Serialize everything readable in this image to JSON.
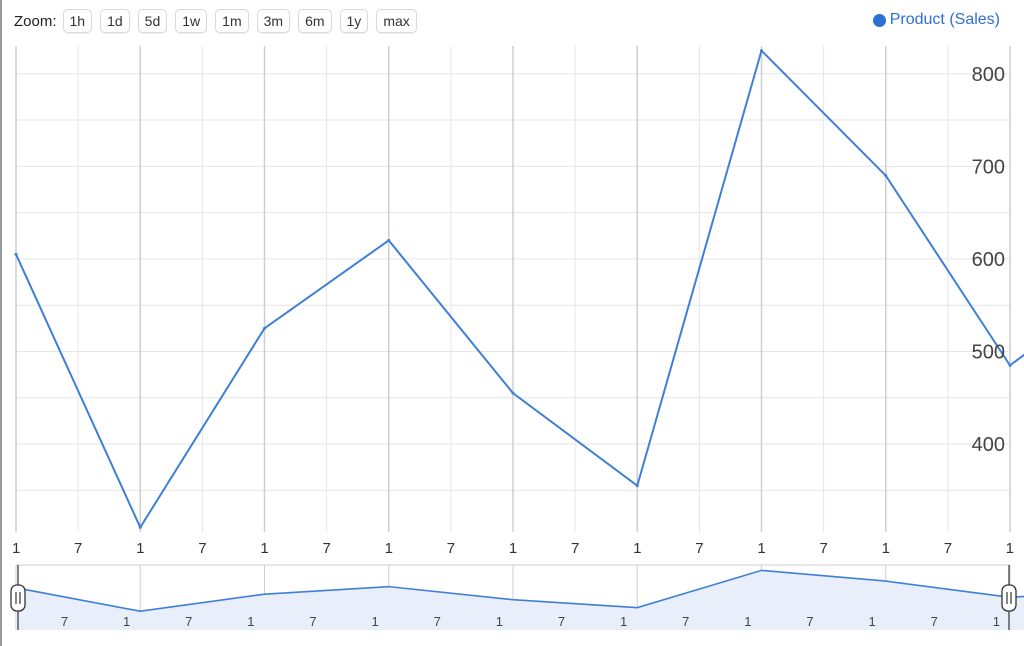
{
  "zoom": {
    "label": "Zoom:",
    "buttons": [
      "1h",
      "1d",
      "5d",
      "1w",
      "1m",
      "3m",
      "6m",
      "1y",
      "max"
    ]
  },
  "legend": {
    "label": "Product (Sales)"
  },
  "colors": {
    "line": "#3f7fd6",
    "legend": "#2f6fd2",
    "range_fill": "#e8effb",
    "grid": "#e6e6e6",
    "grid_major": "#cfcfcf"
  },
  "chart_data": {
    "type": "line",
    "title": "",
    "xlabel": "",
    "ylabel": "",
    "x_tick_labels": [
      "1",
      "7",
      "1",
      "7",
      "1",
      "7",
      "1",
      "7",
      "1",
      "7",
      "1",
      "7",
      "1",
      "7",
      "1",
      "7",
      "1"
    ],
    "navigator_tick_labels": [
      "7",
      "1",
      "7",
      "1",
      "7",
      "1",
      "7",
      "1",
      "7",
      "1",
      "7",
      "1",
      "7",
      "1",
      "7",
      "1"
    ],
    "y_ticks": [
      400,
      500,
      600,
      700,
      800
    ],
    "ylim": [
      305,
      830
    ],
    "grid": true,
    "legend_position": "top-right",
    "series": [
      {
        "name": "Product (Sales)",
        "values": [
          605,
          310,
          525,
          620,
          455,
          355,
          825,
          690,
          485,
          585
        ]
      }
    ]
  }
}
